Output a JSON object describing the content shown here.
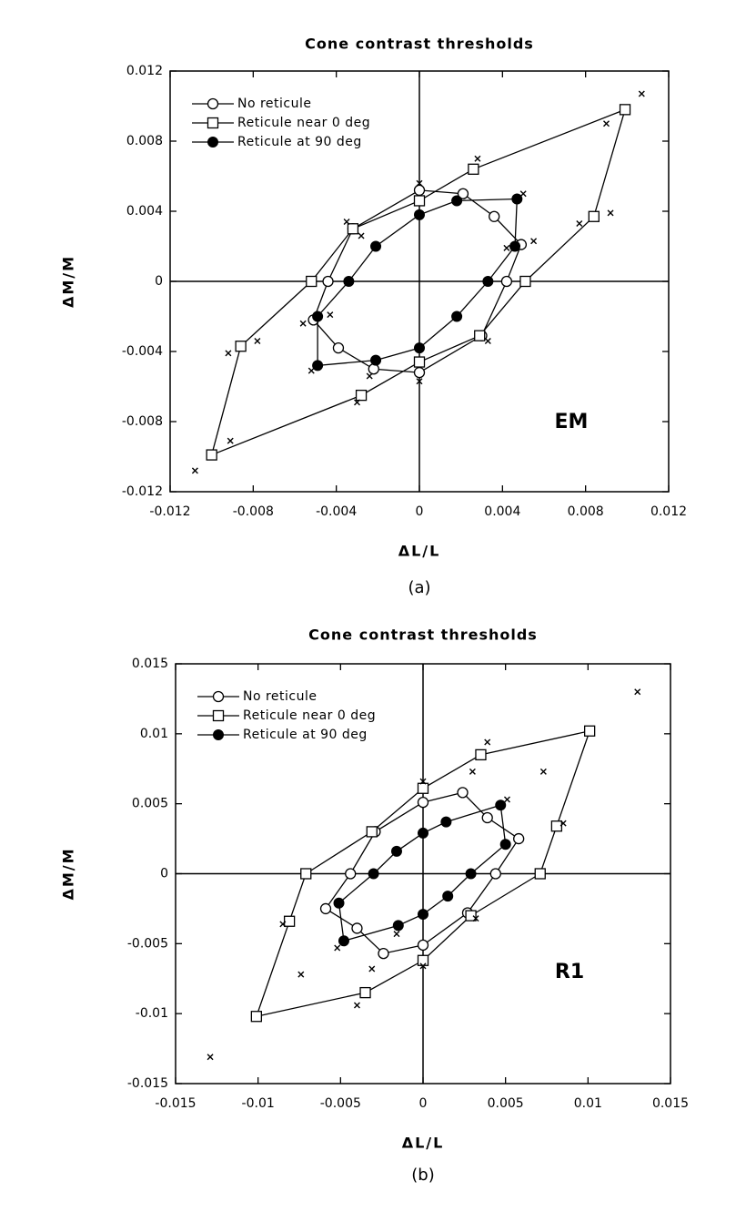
{
  "chart_data": [
    {
      "type": "line",
      "title": "Cone contrast thresholds",
      "xlabel": "ΔL/L",
      "ylabel": "ΔM/M",
      "annotation": "EM",
      "caption": "(a)",
      "xlim": [
        -0.012,
        0.012
      ],
      "ylim": [
        -0.012,
        0.012
      ],
      "xticks": [
        -0.012,
        -0.008,
        -0.004,
        0,
        0.004,
        0.008,
        0.012
      ],
      "yticks": [
        -0.012,
        -0.008,
        -0.004,
        0,
        0.004,
        0.008,
        0.012
      ],
      "zero_lines": true,
      "legend": "upper left",
      "closed": true,
      "series": [
        {
          "name": "No reticule",
          "marker": "circle-open",
          "color": "#000000",
          "x": [
            0,
            0.0021,
            0.0036,
            0.0049,
            0.0042,
            0.003,
            0,
            -0.0022,
            -0.0039,
            -0.0051,
            -0.0044,
            -0.0032
          ],
          "values": [
            0.0052,
            0.005,
            0.0037,
            0.0021,
            0,
            -0.0031,
            -0.0052,
            -0.005,
            -0.0038,
            -0.0022,
            0,
            0.003
          ]
        },
        {
          "name": "Reticule near 0 deg",
          "marker": "square-open",
          "color": "#000000",
          "x": [
            0.0099,
            0.0084,
            0.0051,
            0.0029,
            0,
            -0.0028,
            -0.01,
            -0.0086,
            -0.0052,
            -0.0032,
            0,
            0.0026
          ],
          "values": [
            0.0098,
            0.0037,
            0,
            -0.0031,
            -0.0046,
            -0.0065,
            -0.0099,
            -0.0037,
            0,
            0.003,
            0.0046,
            0.0064
          ]
        },
        {
          "name": "Reticule at 90 deg",
          "marker": "circle-filled",
          "color": "#000000",
          "x": [
            0,
            0.0018,
            0.0047,
            0.0046,
            0.0033,
            0.0018,
            0,
            -0.0021,
            -0.0049,
            -0.0049,
            -0.0034,
            -0.0021
          ],
          "values": [
            0.0038,
            0.0046,
            0.0047,
            0.002,
            0,
            -0.002,
            -0.0038,
            -0.0045,
            -0.0048,
            -0.002,
            0,
            0.002
          ]
        },
        {
          "marker": "x",
          "color": "#000000",
          "x": [
            0.0107,
            0.009,
            0.0092,
            0.0077,
            0.0055,
            0.005,
            0.0028,
            0.0042,
            0.0033,
            -0.0092,
            -0.0078,
            -0.0091,
            -0.0108,
            -0.003,
            -0.0024,
            -0.0052,
            -0.0056,
            0,
            0,
            -0.0035,
            -0.0028,
            -0.0043
          ],
          "values": [
            0.0107,
            0.009,
            0.0039,
            0.0033,
            0.0023,
            0.005,
            0.007,
            0.0019,
            -0.0034,
            -0.0041,
            -0.0034,
            -0.0091,
            -0.0108,
            -0.0069,
            -0.0054,
            -0.0051,
            -0.0024,
            -0.0057,
            0.0056,
            0.0034,
            0.0026,
            -0.0019
          ]
        }
      ]
    },
    {
      "type": "line",
      "title": "Cone contrast thresholds",
      "xlabel": "ΔL/L",
      "ylabel": "ΔM/M",
      "annotation": "R1",
      "caption": "(b)",
      "xlim": [
        -0.015,
        0.015
      ],
      "ylim": [
        -0.015,
        0.015
      ],
      "xticks": [
        -0.015,
        -0.01,
        -0.005,
        0,
        0.005,
        0.01,
        0.015
      ],
      "yticks": [
        -0.015,
        -0.01,
        -0.005,
        0,
        0.005,
        0.01,
        0.015
      ],
      "zero_lines": true,
      "legend": "upper left",
      "closed": true,
      "series": [
        {
          "name": "No reticule",
          "marker": "circle-open",
          "color": "#000000",
          "x": [
            0,
            0.0024,
            0.0039,
            0.0058,
            0.0044,
            0.0027,
            0,
            -0.0024,
            -0.004,
            -0.0059,
            -0.0044,
            -0.0029
          ],
          "values": [
            0.0051,
            0.0058,
            0.004,
            0.0025,
            0,
            -0.0028,
            -0.0051,
            -0.0057,
            -0.0039,
            -0.0025,
            0,
            0.003
          ]
        },
        {
          "name": "Reticule near 0 deg",
          "marker": "square-open",
          "color": "#000000",
          "x": [
            0.0101,
            0.0081,
            0.0071,
            0.0029,
            0,
            -0.0035,
            -0.0101,
            -0.0081,
            -0.0071,
            -0.0031,
            0,
            0.0035
          ],
          "values": [
            0.0102,
            0.0034,
            0,
            -0.003,
            -0.0062,
            -0.0085,
            -0.0102,
            -0.0034,
            0,
            0.003,
            0.0061,
            0.0085
          ]
        },
        {
          "name": "Reticule at 90 deg",
          "marker": "circle-filled",
          "color": "#000000",
          "x": [
            0,
            0.0014,
            0.0047,
            0.005,
            0.0029,
            0.0015,
            0,
            -0.0015,
            -0.0048,
            -0.0051,
            -0.003,
            -0.0016
          ],
          "values": [
            0.0029,
            0.0037,
            0.0049,
            0.0021,
            0,
            -0.0016,
            -0.0029,
            -0.0037,
            -0.0048,
            -0.0021,
            0,
            0.0016
          ]
        },
        {
          "marker": "x",
          "color": "#000000",
          "x": [
            0.013,
            -0.0129,
            0.0085,
            0.0073,
            0.0051,
            0.0039,
            0.003,
            -0.0074,
            -0.0085,
            -0.004,
            -0.0031,
            -0.0016,
            0,
            0,
            -0.0052,
            0.0032
          ],
          "values": [
            0.013,
            -0.0131,
            0.0036,
            0.0073,
            0.0053,
            0.0094,
            0.0073,
            -0.0072,
            -0.0036,
            -0.0094,
            -0.0068,
            -0.0043,
            -0.0066,
            0.0066,
            -0.0053,
            -0.0032
          ]
        }
      ]
    }
  ]
}
